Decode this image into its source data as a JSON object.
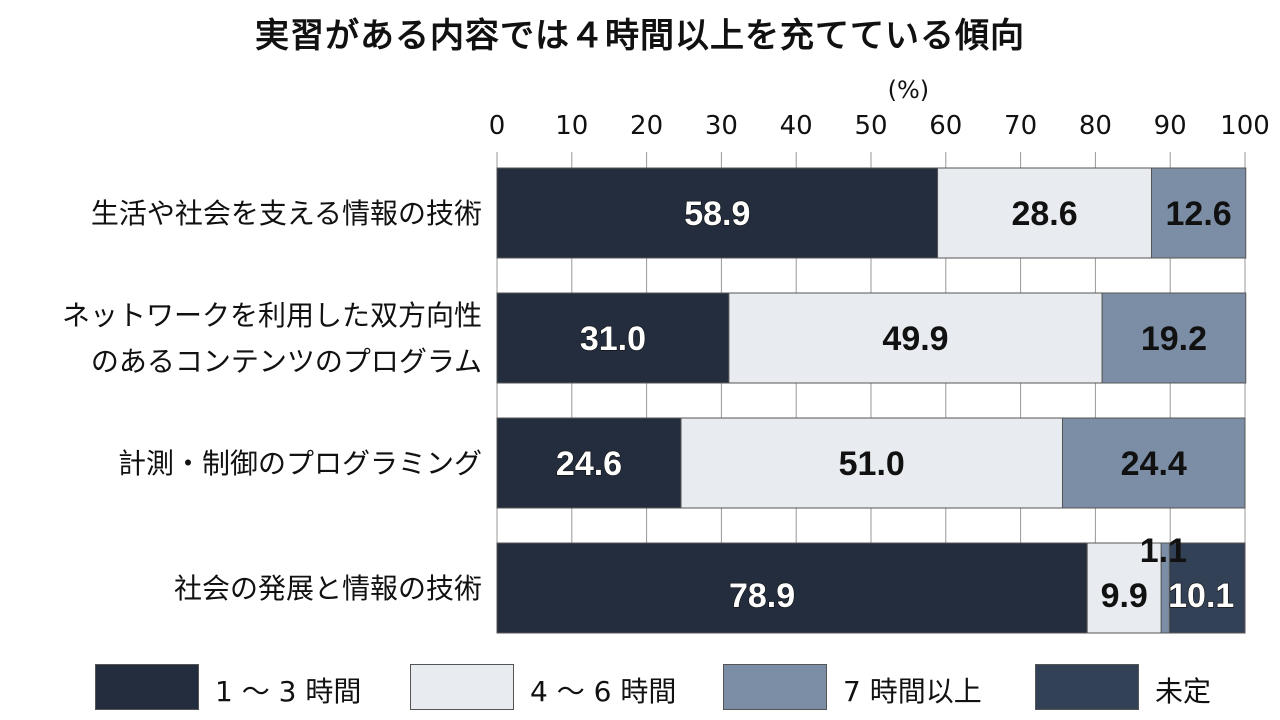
{
  "chart_data": {
    "type": "bar",
    "orientation": "horizontal",
    "stacked": true,
    "title": "実習がある内容では４時間以上を充てている傾向",
    "unit": "(%)",
    "xlim": [
      0,
      100
    ],
    "xticks": [
      "0",
      "10",
      "20",
      "30",
      "40",
      "50",
      "60",
      "70",
      "80",
      "90",
      "100"
    ],
    "categories": [
      [
        "生活や社会を支える情報の技術"
      ],
      [
        "ネットワークを利用した双方向性",
        "のあるコンテンツのプログラム"
      ],
      [
        "計測・制御のプログラミング"
      ],
      [
        "社会の発展と情報の技術"
      ]
    ],
    "series": [
      {
        "name": "1 ～ 3 時間",
        "color": "#232d3e",
        "label_color": "#ffffff",
        "values": [
          58.9,
          31.0,
          24.6,
          78.9
        ],
        "labels": [
          "58.9",
          "31.0",
          "24.6",
          "78.9"
        ]
      },
      {
        "name": "4 ～ 6 時間",
        "color": "#e8ecf0",
        "label_color": "#111111",
        "values": [
          28.6,
          49.9,
          51.0,
          9.9
        ],
        "labels": [
          "28.6",
          "49.9",
          "51.0",
          "9.9"
        ]
      },
      {
        "name": "7 時間以上",
        "color": "#7b8ea5",
        "label_color": "#111111",
        "values": [
          12.6,
          19.2,
          24.4,
          1.1
        ],
        "labels": [
          "12.6",
          "19.2",
          "24.4",
          "1.1"
        ]
      },
      {
        "name": "未定",
        "color": "#324156",
        "label_color": "#ffffff",
        "values": [
          0,
          0,
          0,
          10.1
        ],
        "labels": [
          "",
          "",
          "",
          "10.1"
        ]
      }
    ],
    "legend_position": "bottom",
    "grid": true
  }
}
